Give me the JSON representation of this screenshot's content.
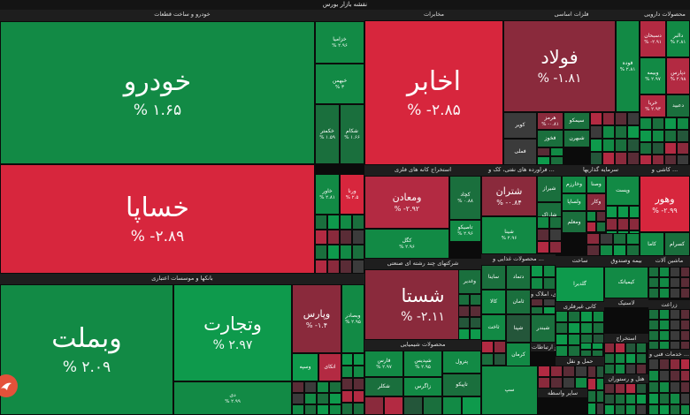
{
  "header": {
    "title": "نقشه بازار بورس"
  },
  "sectors": [
    {
      "name": "خودرو و ساخت قطعات"
    },
    {
      "name": "بانکها و موسسات اعتباری"
    },
    {
      "name": "مخابرات"
    },
    {
      "name": "فلزات اساسی"
    },
    {
      "name": "محصولات دارویی"
    },
    {
      "name": "استخراج کانه های فلزی"
    },
    {
      "name": "فراورده های نفتی، کک و ..."
    },
    {
      "name": "سرمایه گذاریها"
    },
    {
      "name": "کاشی و ..."
    },
    {
      "name": "شرکتهای چند رشته ای صنعتی"
    },
    {
      "name": "محصولات غذایی و ..."
    },
    {
      "name": "ساخت"
    },
    {
      "name": "بیمه وصندوق"
    },
    {
      "name": "ماشین آلات"
    },
    {
      "name": "محصولات شیمیایی"
    }
  ],
  "tiles": [
    {
      "name": "خودرو",
      "change": "% ۱.۶۵"
    },
    {
      "name": "خساپا",
      "change": "% -۲.۸۹"
    },
    {
      "name": "وبملت",
      "change": "% ۲.۰۹"
    },
    {
      "name": "وتجارت",
      "change": "% ۲.۹۷"
    },
    {
      "name": "اخابر",
      "change": "% -۲.۸۵"
    },
    {
      "name": "فولاد",
      "change": "% -۱.۸۱"
    },
    {
      "name": "شستا",
      "change": "% -۲.۱۱"
    },
    {
      "name": "وپارس",
      "change": "% -۱.۴"
    },
    {
      "name": "ومعادن",
      "change": "% -۲.۹۲"
    },
    {
      "name": "شتران",
      "change": "% -۰.۸۴"
    },
    {
      "name": "وهور",
      "change": "% -۲.۹۹"
    },
    {
      "name": "خزامیا",
      "change": "% ۲.۹۶"
    },
    {
      "name": "خبهمن",
      "change": "% ۳"
    },
    {
      "name": "خکمتر",
      "change": "% ۱.۵۹"
    },
    {
      "name": "شکام",
      "change": "% ۱.۶۶"
    },
    {
      "name": "خاور",
      "change": "% ۲.۸۱"
    },
    {
      "name": "ورنا",
      "change": "% ۲.۵"
    },
    {
      "name": "وبصادر",
      "change": "% ۲.۹۵"
    },
    {
      "name": "کچاد",
      "change": "% ۰.۸۸"
    },
    {
      "name": "تاصیکو",
      "change": "% ۲.۹۶"
    },
    {
      "name": "کگل",
      "change": "% ۲.۹۶"
    },
    {
      "name": "شینا",
      "change": "% ۲.۹۶"
    },
    {
      "name": "دسبحان",
      "change": "% -۲.۹۱"
    },
    {
      "name": "دالبر",
      "change": "% ۲.۸۱"
    },
    {
      "name": "وبیمه",
      "change": "% ۲.۹۷"
    },
    {
      "name": "دپارس",
      "change": "% ۲.۹۸"
    },
    {
      "name": "خریا",
      "change": "% ۲.۹۳"
    },
    {
      "name": "فارس",
      "change": "% ۲.۹۷"
    },
    {
      "name": "شپدیس",
      "change": "% ۲.۹۵"
    },
    {
      "name": "فوده",
      "change": "% ۲.۸۱"
    },
    {
      "name": "کویر",
      "change": ""
    },
    {
      "name": "هرمز",
      "change": "% -۰.۸۱"
    },
    {
      "name": "سیمکو",
      "change": ""
    },
    {
      "name": "شبهرن",
      "change": ""
    },
    {
      "name": "وخارزم",
      "change": ""
    },
    {
      "name": "وصنا",
      "change": ""
    },
    {
      "name": "فخوز",
      "change": ""
    },
    {
      "name": "ولساپا",
      "change": ""
    },
    {
      "name": "وکار",
      "change": ""
    },
    {
      "name": "وپست",
      "change": ""
    },
    {
      "name": "ومعلم",
      "change": ""
    },
    {
      "name": "شیراز",
      "change": ""
    },
    {
      "name": "شاراک",
      "change": ""
    },
    {
      "name": "زاگرس",
      "change": ""
    },
    {
      "name": "شکلر",
      "change": ""
    },
    {
      "name": "پترول",
      "change": ""
    },
    {
      "name": "کرمان",
      "change": ""
    },
    {
      "name": "تاپیکو",
      "change": ""
    },
    {
      "name": "فملی",
      "change": ""
    },
    {
      "name": "وغدیر",
      "change": ""
    },
    {
      "name": "ساینا",
      "change": ""
    },
    {
      "name": "کالا",
      "change": ""
    },
    {
      "name": "ثاخت",
      "change": ""
    },
    {
      "name": "سپ",
      "change": ""
    },
    {
      "name": "دتماد",
      "change": ""
    },
    {
      "name": "ثامان",
      "change": ""
    },
    {
      "name": "شپنا",
      "change": ""
    },
    {
      "name": "شبندر",
      "change": ""
    },
    {
      "name": "دی",
      "change": "% ۲.۹۹"
    },
    {
      "name": "کاما",
      "change": ""
    },
    {
      "name": "کیمیاتک",
      "change": ""
    },
    {
      "name": "کسرام",
      "change": ""
    },
    {
      "name": "وسپه",
      "change": ""
    },
    {
      "name": "اتکای",
      "change": ""
    },
    {
      "name": "گلدیرا",
      "change": ""
    },
    {
      "name": "دعبید",
      "change": ""
    }
  ],
  "fillers": [
    "اطلاعات و ارتباطات",
    "انبوه سازی، املاک و ...",
    "سایر واسطه",
    "حمل و نقل",
    "هتل و رستوران",
    "خدمات فنی و ...",
    "استخراج",
    "زراعت",
    "کانی غیرفلزی",
    "لاستیک"
  ]
}
